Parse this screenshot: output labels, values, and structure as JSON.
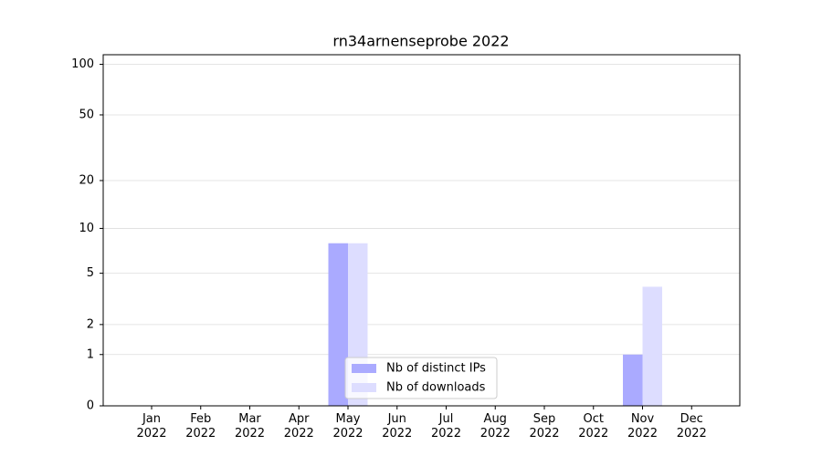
{
  "chart_data": {
    "type": "bar",
    "title": "rn34arnenseprobe 2022",
    "categories": [
      "Jan 2022",
      "Feb 2022",
      "Mar 2022",
      "Apr 2022",
      "May 2022",
      "Jun 2022",
      "Jul 2022",
      "Aug 2022",
      "Sep 2022",
      "Oct 2022",
      "Nov 2022",
      "Dec 2022"
    ],
    "series": [
      {
        "name": "Nb of distinct IPs",
        "color": "#aaaaff",
        "values": [
          0,
          0,
          0,
          0,
          8,
          0,
          0,
          0,
          0,
          0,
          1,
          0
        ]
      },
      {
        "name": "Nb of downloads",
        "color": "#ddddff",
        "values": [
          0,
          0,
          0,
          0,
          8,
          0,
          0,
          0,
          0,
          0,
          4,
          0
        ]
      }
    ],
    "ylim": [
      0,
      114
    ],
    "yticks": [
      0,
      1,
      2,
      5,
      10,
      20,
      50,
      100
    ],
    "yscale": "log1p",
    "grid": true,
    "legend": "lower center"
  }
}
